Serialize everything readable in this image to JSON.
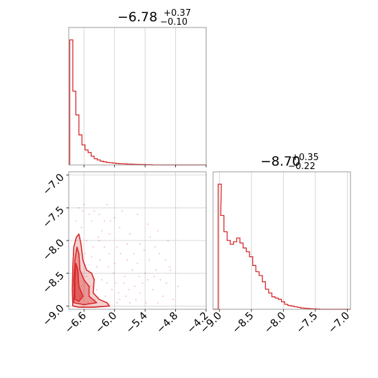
{
  "chart_data": {
    "type": "corner",
    "color": "#d62728",
    "panels": {
      "top_hist": {
        "type": "histogram",
        "title": {
          "main": "−6.78",
          "plus": "+0.37",
          "minus": "−0.10"
        },
        "xlim": [
          -6.9,
          -4.2
        ],
        "xticks": [
          -6.6,
          -6.0,
          -5.4,
          -4.8,
          -4.2
        ],
        "bins": [
          [
            -6.88,
            1.0
          ],
          [
            -6.82,
            0.59
          ],
          [
            -6.76,
            0.4
          ],
          [
            -6.7,
            0.24
          ],
          [
            -6.64,
            0.16
          ],
          [
            -6.58,
            0.12
          ],
          [
            -6.52,
            0.1
          ],
          [
            -6.46,
            0.07
          ],
          [
            -6.4,
            0.05
          ],
          [
            -6.34,
            0.04
          ],
          [
            -6.28,
            0.03
          ],
          [
            -6.22,
            0.025
          ],
          [
            -6.16,
            0.02
          ],
          [
            -6.1,
            0.018
          ],
          [
            -6.04,
            0.015
          ],
          [
            -5.98,
            0.012
          ],
          [
            -5.92,
            0.01
          ],
          [
            -5.86,
            0.009
          ],
          [
            -5.8,
            0.008
          ],
          [
            -5.74,
            0.007
          ],
          [
            -5.68,
            0.006
          ],
          [
            -5.62,
            0.005
          ],
          [
            -5.56,
            0.004
          ],
          [
            -5.5,
            0.003
          ],
          [
            -5.44,
            0.003
          ],
          [
            -5.38,
            0.002
          ],
          [
            -5.32,
            0.002
          ]
        ]
      },
      "right_hist": {
        "type": "histogram",
        "title": {
          "main": "−8.70",
          "plus": "+0.35",
          "minus": "−0.22"
        },
        "xlim": [
          -9.1,
          -6.95
        ],
        "xticks": [
          -9.0,
          -8.5,
          -8.0,
          -7.5,
          -7.0
        ],
        "tick_labels": [
          "−9.0",
          "−8.5",
          "−8.0",
          "−7.5",
          "−7.0"
        ],
        "bins": [
          [
            -9.02,
            1.0
          ],
          [
            -8.98,
            0.75
          ],
          [
            -8.93,
            0.62
          ],
          [
            -8.88,
            0.55
          ],
          [
            -8.83,
            0.52
          ],
          [
            -8.78,
            0.54
          ],
          [
            -8.73,
            0.57
          ],
          [
            -8.68,
            0.53
          ],
          [
            -8.63,
            0.49
          ],
          [
            -8.58,
            0.46
          ],
          [
            -8.53,
            0.42
          ],
          [
            -8.48,
            0.35
          ],
          [
            -8.43,
            0.3
          ],
          [
            -8.38,
            0.27
          ],
          [
            -8.33,
            0.22
          ],
          [
            -8.28,
            0.16
          ],
          [
            -8.23,
            0.13
          ],
          [
            -8.18,
            0.1
          ],
          [
            -8.13,
            0.09
          ],
          [
            -8.08,
            0.08
          ],
          [
            -8.03,
            0.06
          ],
          [
            -7.98,
            0.04
          ],
          [
            -7.93,
            0.03
          ],
          [
            -7.88,
            0.025
          ],
          [
            -7.83,
            0.02
          ],
          [
            -7.78,
            0.015
          ],
          [
            -7.73,
            0.01
          ],
          [
            -7.68,
            0.008
          ],
          [
            -7.63,
            0.006
          ],
          [
            -7.58,
            0.004
          ],
          [
            -7.53,
            0.003
          ],
          [
            -7.48,
            0.002
          ]
        ]
      },
      "joint": {
        "type": "scatter-contour",
        "xlim": [
          -6.9,
          -4.2
        ],
        "ylim": [
          -9.05,
          -6.95
        ],
        "xticks": [
          -6.6,
          -6.0,
          -5.4,
          -4.8,
          -4.2
        ],
        "xtick_labels": [
          "−6.6",
          "−6.0",
          "−5.4",
          "−4.8",
          "−4.2"
        ],
        "yticks": [
          -9.0,
          -8.5,
          -8.0,
          -7.5,
          -7.0
        ],
        "ytick_labels": [
          "−9.0",
          "−8.5",
          "−8.0",
          "−7.5",
          "−7.0"
        ],
        "contours": [
          [
            [
              -6.82,
              -9.0
            ],
            [
              -6.83,
              -8.75
            ],
            [
              -6.82,
              -8.4
            ],
            [
              -6.8,
              -8.1
            ],
            [
              -6.75,
              -7.95
            ],
            [
              -6.7,
              -7.9
            ],
            [
              -6.66,
              -8.05
            ],
            [
              -6.62,
              -8.3
            ],
            [
              -6.55,
              -8.45
            ],
            [
              -6.45,
              -8.5
            ],
            [
              -6.4,
              -8.6
            ],
            [
              -6.42,
              -8.8
            ],
            [
              -6.3,
              -8.9
            ],
            [
              -6.15,
              -8.95
            ],
            [
              -6.1,
              -9.0
            ],
            [
              -6.4,
              -9.02
            ],
            [
              -6.7,
              -9.02
            ]
          ],
          [
            [
              -6.8,
              -8.95
            ],
            [
              -6.8,
              -8.6
            ],
            [
              -6.78,
              -8.3
            ],
            [
              -6.74,
              -8.1
            ],
            [
              -6.7,
              -8.2
            ],
            [
              -6.68,
              -8.45
            ],
            [
              -6.6,
              -8.6
            ],
            [
              -6.5,
              -8.7
            ],
            [
              -6.5,
              -8.85
            ],
            [
              -6.35,
              -8.95
            ],
            [
              -6.6,
              -8.98
            ]
          ],
          [
            [
              -6.78,
              -8.9
            ],
            [
              -6.78,
              -8.6
            ],
            [
              -6.76,
              -8.35
            ],
            [
              -6.72,
              -8.45
            ],
            [
              -6.7,
              -8.7
            ],
            [
              -6.62,
              -8.85
            ],
            [
              -6.7,
              -8.93
            ]
          ]
        ],
        "scatter": [
          [
            -6.7,
            -7.5
          ],
          [
            -6.6,
            -7.45
          ],
          [
            -6.5,
            -7.6
          ],
          [
            -6.4,
            -7.55
          ],
          [
            -6.2,
            -7.7
          ],
          [
            -6.0,
            -7.65
          ],
          [
            -5.9,
            -7.8
          ],
          [
            -5.7,
            -7.9
          ],
          [
            -5.5,
            -8.05
          ],
          [
            -5.3,
            -7.95
          ],
          [
            -5.2,
            -8.1
          ],
          [
            -5.0,
            -8.3
          ],
          [
            -4.9,
            -8.45
          ],
          [
            -5.1,
            -8.6
          ],
          [
            -5.4,
            -8.5
          ],
          [
            -5.6,
            -8.7
          ],
          [
            -5.8,
            -8.55
          ],
          [
            -6.0,
            -8.35
          ],
          [
            -6.1,
            -8.2
          ],
          [
            -6.2,
            -8.1
          ],
          [
            -6.3,
            -8.0
          ],
          [
            -5.9,
            -8.9
          ],
          [
            -5.7,
            -8.95
          ],
          [
            -5.5,
            -8.8
          ],
          [
            -6.05,
            -8.75
          ],
          [
            -6.25,
            -8.6
          ],
          [
            -6.35,
            -8.4
          ],
          [
            -6.45,
            -8.25
          ],
          [
            -6.55,
            -8.0
          ],
          [
            -6.65,
            -7.8
          ],
          [
            -6.75,
            -7.7
          ],
          [
            -6.3,
            -7.6
          ],
          [
            -6.1,
            -7.9
          ],
          [
            -5.95,
            -8.1
          ],
          [
            -5.75,
            -8.3
          ],
          [
            -5.65,
            -8.45
          ],
          [
            -5.45,
            -8.65
          ],
          [
            -5.25,
            -8.75
          ],
          [
            -5.05,
            -8.85
          ],
          [
            -4.95,
            -8.0
          ],
          [
            -5.35,
            -7.75
          ],
          [
            -5.85,
            -7.55
          ],
          [
            -6.15,
            -7.45
          ],
          [
            -6.45,
            -7.7
          ],
          [
            -6.58,
            -8.2
          ],
          [
            -6.48,
            -8.7
          ],
          [
            -6.38,
            -8.9
          ],
          [
            -6.18,
            -8.85
          ],
          [
            -6.02,
            -8.5
          ],
          [
            -5.82,
            -8.65
          ],
          [
            -5.62,
            -8.2
          ],
          [
            -5.42,
            -8.15
          ],
          [
            -5.22,
            -8.55
          ],
          [
            -4.85,
            -8.9
          ],
          [
            -4.75,
            -8.7
          ],
          [
            -5.15,
            -7.85
          ],
          [
            -5.55,
            -7.6
          ],
          [
            -6.25,
            -7.85
          ],
          [
            -6.62,
            -7.55
          ],
          [
            -6.72,
            -8.55
          ],
          [
            -6.68,
            -8.85
          ],
          [
            -6.52,
            -8.95
          ],
          [
            -6.28,
            -8.3
          ],
          [
            -5.98,
            -8.65
          ],
          [
            -5.78,
            -8.85
          ],
          [
            -5.58,
            -8.9
          ],
          [
            -5.38,
            -8.95
          ],
          [
            -5.18,
            -8.45
          ],
          [
            -4.98,
            -8.65
          ],
          [
            -6.08,
            -7.7
          ],
          [
            -5.88,
            -8.2
          ],
          [
            -6.42,
            -8.1
          ],
          [
            -6.32,
            -7.95
          ],
          [
            -6.12,
            -8.4
          ],
          [
            -5.92,
            -8.8
          ],
          [
            -5.72,
            -8.75
          ],
          [
            -5.52,
            -8.55
          ],
          [
            -5.32,
            -8.3
          ],
          [
            -5.12,
            -8.2
          ],
          [
            -4.92,
            -8.4
          ],
          [
            -6.65,
            -8.7
          ],
          [
            -6.55,
            -8.55
          ],
          [
            -6.35,
            -8.75
          ],
          [
            -6.15,
            -8.65
          ],
          [
            -5.95,
            -8.95
          ],
          [
            -5.75,
            -8.05
          ],
          [
            -5.55,
            -8.35
          ],
          [
            -5.35,
            -8.6
          ],
          [
            -5.15,
            -8.95
          ]
        ]
      }
    }
  }
}
